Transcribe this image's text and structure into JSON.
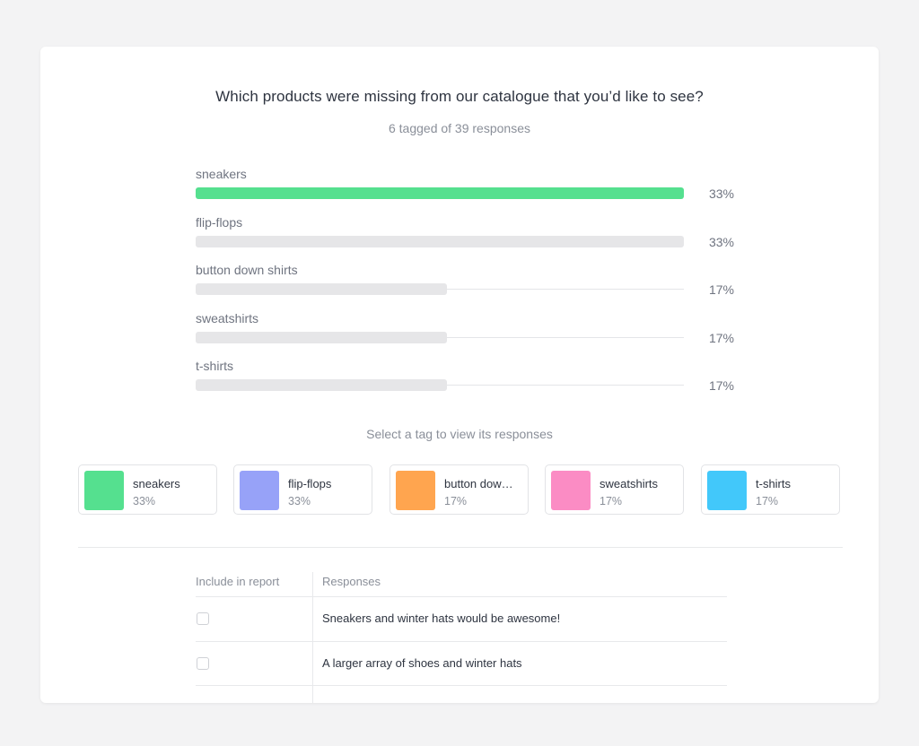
{
  "survey": {
    "question": "Which products were missing from our catalogue that you’d like to see?",
    "subtitle": "6 tagged of 39 responses"
  },
  "chart_data": {
    "type": "bar",
    "orientation": "horizontal",
    "categories": [
      "sneakers",
      "flip-flops",
      "button down shirts",
      "sweatshirts",
      "t-shirts"
    ],
    "values": [
      33,
      33,
      17,
      17,
      17
    ],
    "value_labels": [
      "33%",
      "33%",
      "17%",
      "17%",
      "17%"
    ],
    "max": 33,
    "highlight_color": "#55e08f",
    "base_color": "#e6e6e8",
    "highlighted_index": 0
  },
  "tags": {
    "hint": "Select a tag to view its responses",
    "items": [
      {
        "name": "sneakers",
        "pct": "33%",
        "color": "#55e08f"
      },
      {
        "name": "flip-flops",
        "pct": "33%",
        "color": "#97a2f8"
      },
      {
        "name": "button down shirts",
        "display": "button dow…",
        "pct": "17%",
        "color": "#ffa54f"
      },
      {
        "name": "sweatshirts",
        "pct": "17%",
        "color": "#fb8cc4"
      },
      {
        "name": "t-shirts",
        "pct": "17%",
        "color": "#42c8fa"
      }
    ]
  },
  "responses_table": {
    "col_include": "Include in report",
    "col_responses": "Responses",
    "rows": [
      {
        "text": "Sneakers and winter hats would be awesome!",
        "included": false
      },
      {
        "text": "A larger array of shoes and winter hats",
        "included": false
      }
    ]
  }
}
